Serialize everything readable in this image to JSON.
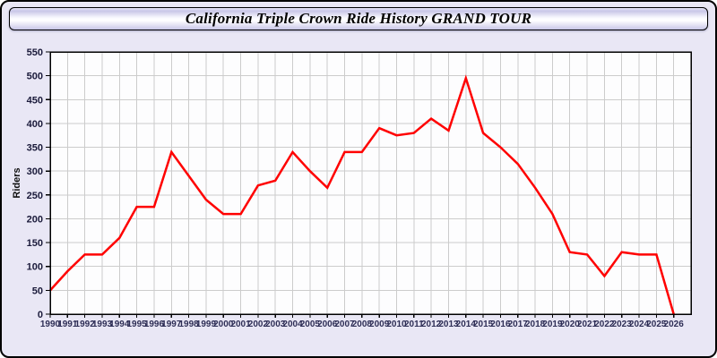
{
  "window": {
    "title": "California Triple Crown Ride History GRAND TOUR"
  },
  "chart_data": {
    "type": "line",
    "title": "California Triple Crown Ride History GRAND TOUR",
    "xlabel": "",
    "ylabel": "Riders",
    "x": [
      1990,
      1991,
      1992,
      1993,
      1994,
      1995,
      1996,
      1997,
      1998,
      1999,
      2000,
      2001,
      2002,
      2003,
      2004,
      2005,
      2006,
      2007,
      2008,
      2009,
      2010,
      2011,
      2012,
      2013,
      2014,
      2015,
      2016,
      2017,
      2018,
      2019,
      2020,
      2021,
      2022,
      2023,
      2024,
      2025,
      2026
    ],
    "series": [
      {
        "name": "Riders",
        "color": "#ff0000",
        "values": [
          50,
          90,
          125,
          125,
          160,
          225,
          225,
          340,
          290,
          240,
          210,
          210,
          270,
          280,
          340,
          300,
          265,
          340,
          340,
          390,
          375,
          380,
          410,
          385,
          495,
          380,
          350,
          315,
          265,
          210,
          130,
          125,
          80,
          130,
          125,
          125,
          0
        ]
      }
    ],
    "ylim": [
      0,
      550
    ],
    "ytick_step": 50,
    "grid": true,
    "legend_position": "none",
    "colors": {
      "line": "#ff0000",
      "grid": "#cccccc",
      "plot_background": "#fdfdfe",
      "window_background": "#e9e7f5",
      "axis_border": "#000000",
      "x_tick_label": "#2d2d55",
      "y_tick_label": "#1a1a3a"
    }
  }
}
